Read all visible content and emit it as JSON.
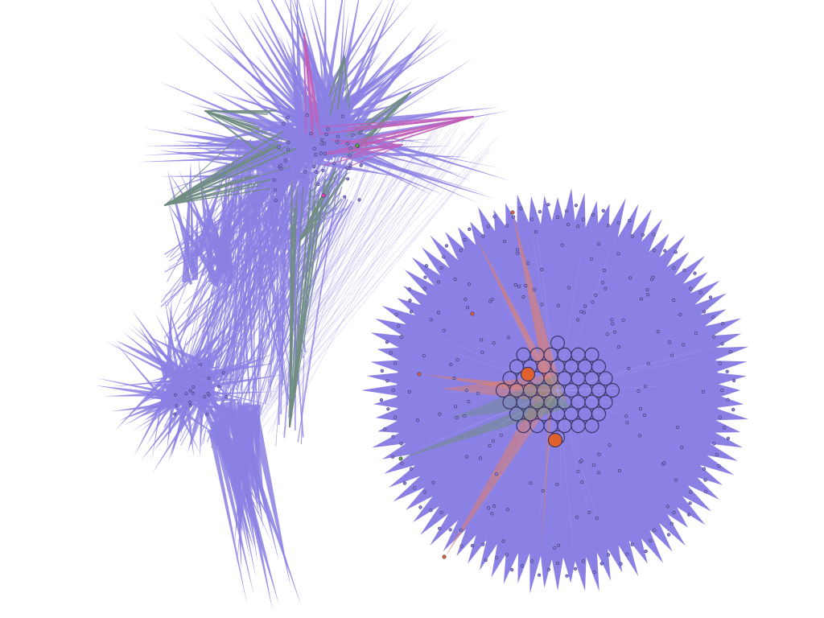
{
  "graph": {
    "background": "#ffffff",
    "edge_color": "#8b80e3",
    "node_stroke": "#3b3566",
    "cluster_colors": {
      "teal": "#6f8c82",
      "magenta": "#c060b8",
      "orange": "#e0602e",
      "coral": "#d98075",
      "green": "#5aa040",
      "pink": "#e040a8"
    },
    "components": [
      {
        "name": "upper-left-fan"
      },
      {
        "name": "lower-left-fan"
      },
      {
        "name": "radial-cluster"
      }
    ],
    "highlighted_nodes": [
      {
        "component": "radial-cluster",
        "color": "#e0602e"
      },
      {
        "component": "radial-cluster",
        "color": "#e0602e"
      }
    ]
  }
}
